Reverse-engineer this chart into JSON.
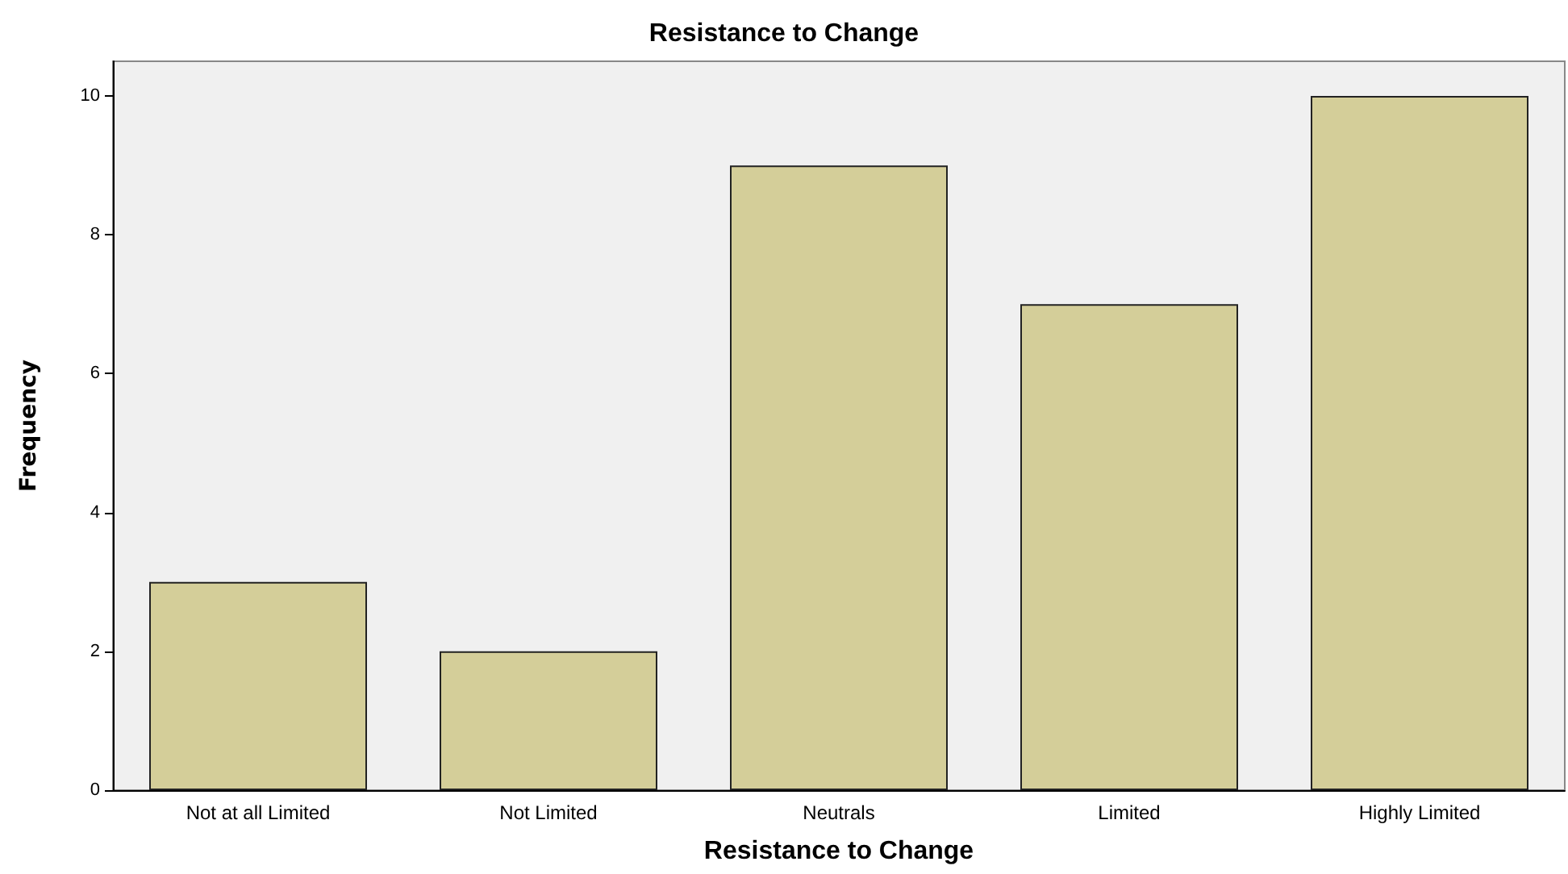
{
  "chart_data": {
    "type": "bar",
    "title": "Resistance to Change",
    "xlabel": "Resistance to Change",
    "ylabel": "Frequency",
    "categories": [
      "Not at all Limited",
      "Not Limited",
      "Neutrals",
      "Limited",
      "Highly Limited"
    ],
    "values": [
      3,
      2,
      9,
      7,
      10
    ],
    "color": "#d4ce99",
    "ylim": [
      0,
      10.5
    ],
    "yticks": [
      0,
      2,
      4,
      6,
      8,
      10
    ]
  }
}
